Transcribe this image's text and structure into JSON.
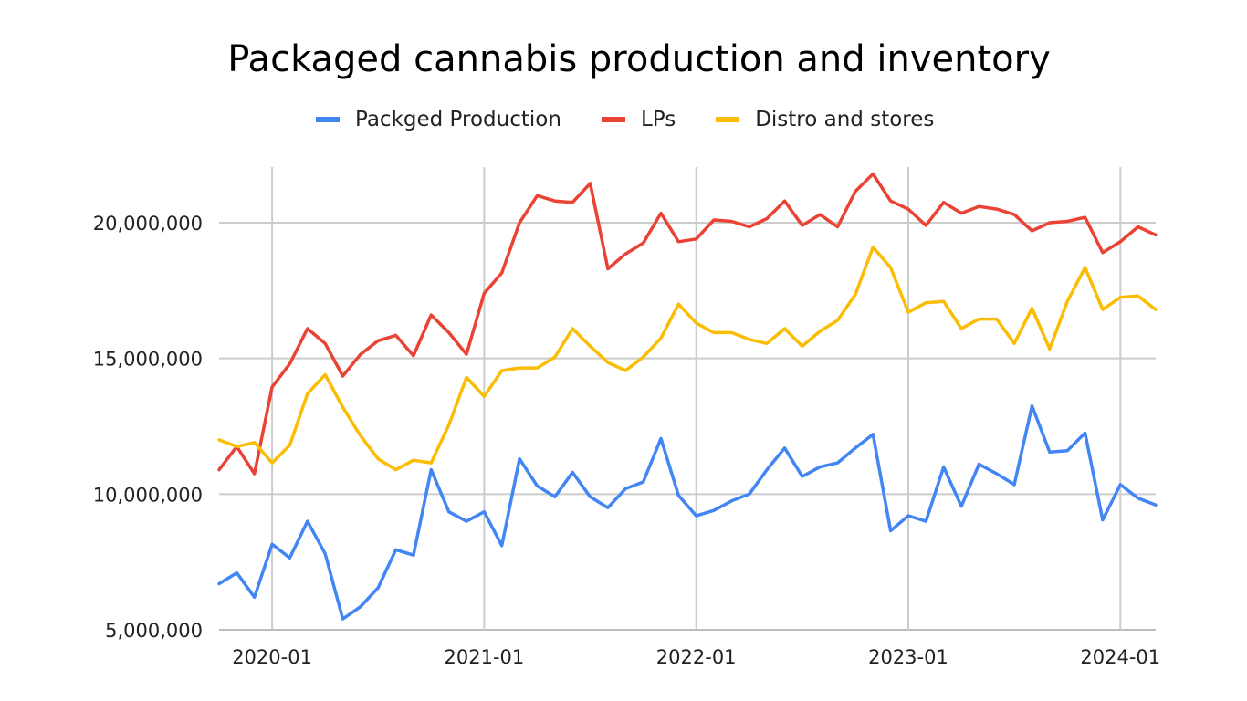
{
  "chart_data": {
    "type": "line",
    "title": "Packaged cannabis production and inventory",
    "xlabel": "",
    "ylabel": "",
    "legend_position": "top",
    "grid": true,
    "ylim": [
      5000000,
      22000000
    ],
    "yticks": [
      5000000,
      10000000,
      15000000,
      20000000
    ],
    "ytick_labels": [
      "5,000,000",
      "10,000,000",
      "15,000,000",
      "20,000,000"
    ],
    "xticks": [
      {
        "index": 3,
        "label": "2020-01"
      },
      {
        "index": 15,
        "label": "2021-01"
      },
      {
        "index": 27,
        "label": "2022-01"
      },
      {
        "index": 39,
        "label": "2023-01"
      },
      {
        "index": 51,
        "label": "2024-01"
      }
    ],
    "x": [
      "2019-10",
      "2019-11",
      "2019-12",
      "2020-01",
      "2020-02",
      "2020-03",
      "2020-04",
      "2020-05",
      "2020-06",
      "2020-07",
      "2020-08",
      "2020-09",
      "2020-10",
      "2020-11",
      "2020-12",
      "2021-01",
      "2021-02",
      "2021-03",
      "2021-04",
      "2021-05",
      "2021-06",
      "2021-07",
      "2021-08",
      "2021-09",
      "2021-10",
      "2021-11",
      "2021-12",
      "2022-01",
      "2022-02",
      "2022-03",
      "2022-04",
      "2022-05",
      "2022-06",
      "2022-07",
      "2022-08",
      "2022-09",
      "2022-10",
      "2022-11",
      "2022-12",
      "2023-01",
      "2023-02",
      "2023-03",
      "2023-04",
      "2023-05",
      "2023-06",
      "2023-07",
      "2023-08",
      "2023-09",
      "2023-10",
      "2023-11",
      "2023-12",
      "2024-01",
      "2024-02",
      "2024-03"
    ],
    "series": [
      {
        "name": "Packged Production",
        "color": "#4285f4",
        "values": [
          6700000,
          7100000,
          6200000,
          8150000,
          7650000,
          9000000,
          7800000,
          5400000,
          5850000,
          6550000,
          7950000,
          7750000,
          10900000,
          9350000,
          9000000,
          9350000,
          8100000,
          11300000,
          10300000,
          9900000,
          10800000,
          9900000,
          9500000,
          10200000,
          10450000,
          12050000,
          9950000,
          9200000,
          9400000,
          9750000,
          10000000,
          10900000,
          11700000,
          10650000,
          11000000,
          11150000,
          11700000,
          12200000,
          8650000,
          9200000,
          9000000,
          11000000,
          9550000,
          11100000,
          10750000,
          10350000,
          13250000,
          11550000,
          11600000,
          12250000,
          9050000,
          10350000,
          9850000,
          9600000
        ]
      },
      {
        "name": "LPs",
        "color": "#ea4335",
        "values": [
          10900000,
          11750000,
          10750000,
          13950000,
          14800000,
          16100000,
          15550000,
          14350000,
          15150000,
          15650000,
          15850000,
          15100000,
          16600000,
          15950000,
          15150000,
          17400000,
          18150000,
          20000000,
          21000000,
          20800000,
          20750000,
          21450000,
          18300000,
          18850000,
          19250000,
          20350000,
          19300000,
          19400000,
          20100000,
          20050000,
          19850000,
          20150000,
          20800000,
          19900000,
          20300000,
          19850000,
          21150000,
          21800000,
          20800000,
          20500000,
          19900000,
          20750000,
          20350000,
          20600000,
          20500000,
          20300000,
          19700000,
          20000000,
          20050000,
          20200000,
          18900000,
          19300000,
          19850000,
          19550000
        ]
      },
      {
        "name": "Distro and stores",
        "color": "#fbbc04",
        "values": [
          12000000,
          11750000,
          11900000,
          11150000,
          11800000,
          13700000,
          14400000,
          13200000,
          12150000,
          11300000,
          10900000,
          11250000,
          11150000,
          12550000,
          14300000,
          13600000,
          14550000,
          14650000,
          14650000,
          15050000,
          16100000,
          15450000,
          14850000,
          14550000,
          15050000,
          15750000,
          17000000,
          16300000,
          15950000,
          15950000,
          15700000,
          15550000,
          16100000,
          15450000,
          16000000,
          16400000,
          17350000,
          19100000,
          18350000,
          16700000,
          17050000,
          17100000,
          16100000,
          16450000,
          16450000,
          15550000,
          16850000,
          15350000,
          17100000,
          18350000,
          16800000,
          17250000,
          17300000,
          16800000
        ]
      }
    ]
  }
}
